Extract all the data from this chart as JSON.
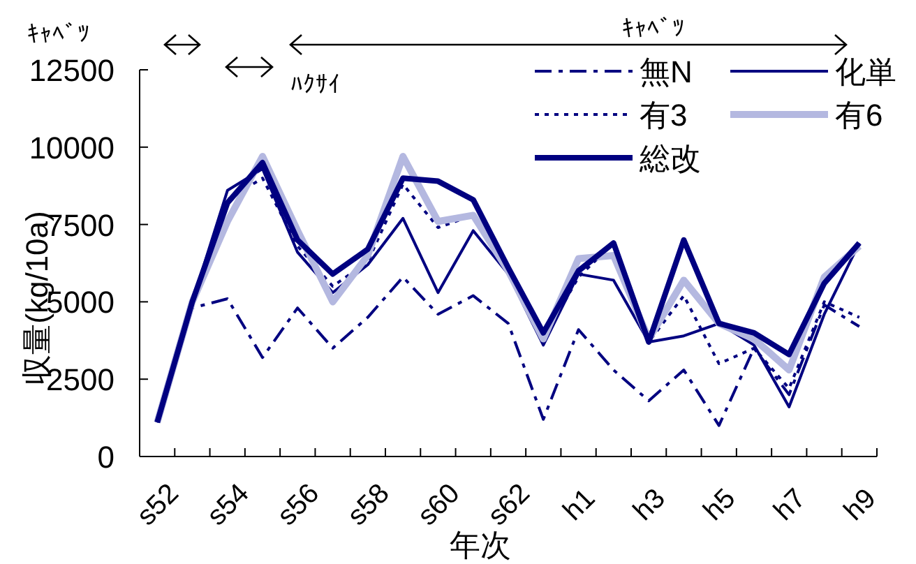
{
  "chart_data": {
    "type": "line",
    "categories": [
      "s52",
      null,
      "s54",
      null,
      "s56",
      null,
      "s58",
      null,
      "s60",
      null,
      "s62",
      null,
      "h1",
      null,
      "h3",
      null,
      "h5",
      null,
      "h7",
      null,
      "h9"
    ],
    "series": [
      {
        "name": "無N",
        "color": "#000080",
        "line_style": "dashed",
        "values": [
          1100,
          4800,
          5100,
          3200,
          4800,
          3500,
          4500,
          5800,
          4600,
          5200,
          4300,
          1200,
          4100,
          2800,
          1800,
          2800,
          1000,
          3500,
          2000,
          4900,
          4200
        ]
      },
      {
        "name": "化単",
        "color": "#000080",
        "line_style": "solid",
        "values": [
          1100,
          5000,
          8600,
          9300,
          6600,
          5300,
          6200,
          7700,
          5300,
          7300,
          5900,
          3600,
          5900,
          5700,
          3700,
          3900,
          4300,
          3600,
          1600,
          4600,
          6900
        ]
      },
      {
        "name": "有3",
        "color": "#000080",
        "line_style": "dotted",
        "values": [
          1100,
          5000,
          8300,
          9000,
          6800,
          5500,
          6300,
          8800,
          7400,
          7800,
          5900,
          3800,
          5800,
          6900,
          3700,
          5200,
          3000,
          3500,
          2200,
          5000,
          4500
        ]
      },
      {
        "name": "有6",
        "color": "#b4b8e0",
        "line_style": "solid",
        "values": [
          1100,
          5000,
          7600,
          9700,
          7300,
          5000,
          6500,
          9700,
          7600,
          7800,
          6000,
          3800,
          6400,
          6500,
          3800,
          5700,
          4300,
          3800,
          2800,
          5800,
          6800
        ]
      },
      {
        "name": "総改",
        "color": "#000080",
        "line_style": "solid",
        "values": [
          1100,
          5000,
          8200,
          9500,
          7000,
          5900,
          6700,
          9000,
          8900,
          8300,
          6100,
          4000,
          6000,
          6900,
          3700,
          7000,
          4300,
          4000,
          3300,
          5600,
          6900
        ]
      }
    ],
    "xlabel": "年次",
    "ylabel": "収量(kg/10a)",
    "ylim": [
      0,
      12500
    ],
    "yticks": [
      0,
      2500,
      5000,
      7500,
      10000,
      12500
    ],
    "annotations": [
      "ｷｬﾍﾞﾂ",
      "ﾊｸｻｲ",
      "ｷｬﾍﾞﾂ"
    ],
    "legend": "top right",
    "grid": false,
    "marker": "none"
  }
}
